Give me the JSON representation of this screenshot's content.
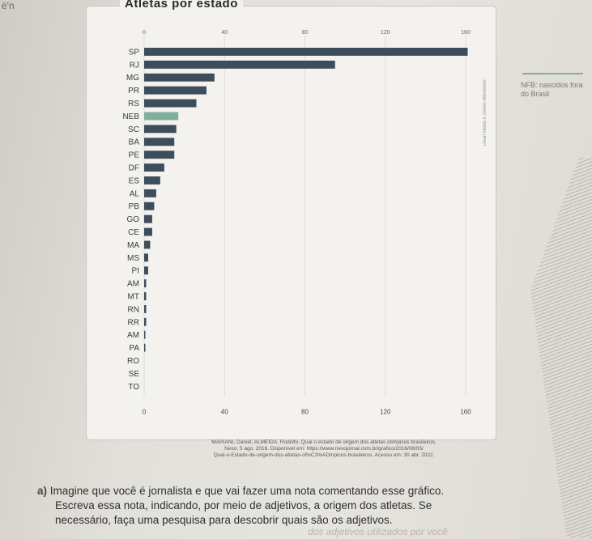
{
  "corner_text": "ë'n",
  "chart_data": {
    "type": "bar",
    "orientation": "horizontal",
    "title": "Atletas por estado",
    "categories": [
      "SP",
      "RJ",
      "MG",
      "PR",
      "RS",
      "NEB",
      "SC",
      "BA",
      "PE",
      "DF",
      "ES",
      "AL",
      "PB",
      "GO",
      "CE",
      "MA",
      "MS",
      "PI",
      "AM",
      "MT",
      "RN",
      "RR",
      "AM",
      "PA",
      "RO",
      "SE",
      "TO"
    ],
    "values": [
      161,
      95,
      35,
      31,
      26,
      17,
      16,
      15,
      15,
      10,
      8,
      6,
      5,
      4,
      4,
      3,
      2,
      2,
      1,
      1,
      1,
      1,
      0.5,
      0.5,
      0,
      0,
      0
    ],
    "highlight_index": 5,
    "top_ticks": [
      "0",
      "40",
      "80",
      "120",
      "160"
    ],
    "bottom_ticks": [
      "0",
      "40",
      "80",
      "120",
      "160"
    ],
    "xlim": [
      0,
      160
    ],
    "colors": {
      "bar": "#3e4d5c",
      "highlight": "#7fb09b"
    },
    "grid": true
  },
  "legend_text": "NFB: nascidos fora do Brasil",
  "side_text": "Dean Mano e Seren Weinstein",
  "source": {
    "line1": "MARIANI, Daniel; ALMEIDA, Rodolfo. Qual o estado de origem dos atletas olímpicos brasileiros.",
    "line2": "Nexo, 5 ago. 2016. Disponível em: https://www.nexojornal.com.br/grafico/2016/08/05/",
    "line3": "Qual-o-Estado-de-origem-dos-atletas-ol%C3%ADmpicos-brasileiros. Acesso em: 30 abr. 2022."
  },
  "question": {
    "label": "a)",
    "line1": "Imagine que você é jornalista e que vai fazer uma nota comentando esse gráfico.",
    "line2": "Escreva essa nota, indicando, por meio de adjetivos, a origem dos atletas. Se",
    "line3": "necessário, faça uma pesquisa para descobrir quais são os adjetivos."
  },
  "faded_text": "dos adjetivos utilizados por você"
}
